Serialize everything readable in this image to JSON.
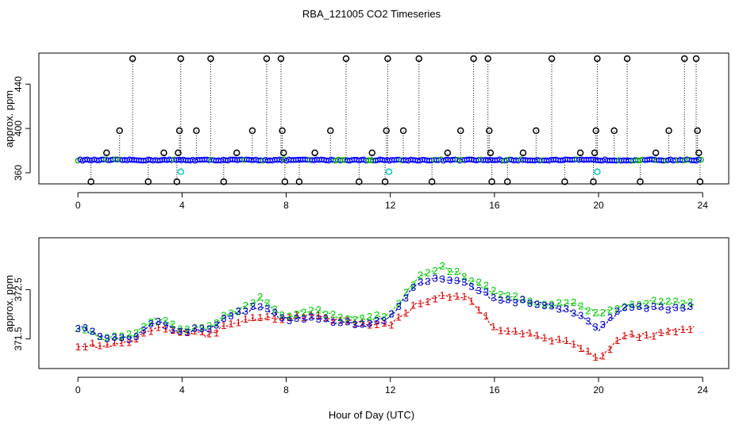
{
  "figure": {
    "title": "RBA_121005  CO2 Timeseries",
    "xlabel": "Hour of Day (UTC)"
  },
  "chart_data": [
    {
      "type": "scatter",
      "panel": "top",
      "ylabel": "approx. ppm",
      "xlim": [
        -1.5,
        25
      ],
      "ylim": [
        350,
        468
      ],
      "x_ticks": [
        0,
        4,
        8,
        12,
        16,
        20,
        24
      ],
      "y_ticks": [
        360,
        400,
        440
      ],
      "baseline_value": 371.5,
      "baseline_color": "#0000ff",
      "baseline_points_color": "#00aa00",
      "spike_color": "#000000",
      "outlier_low_color": "#00cccc",
      "outliers": [
        {
          "x": 0.5,
          "y": 352
        },
        {
          "x": 1.1,
          "y": 378
        },
        {
          "x": 1.6,
          "y": 398
        },
        {
          "x": 2.1,
          "y": 463
        },
        {
          "x": 2.7,
          "y": 352
        },
        {
          "x": 3.3,
          "y": 378
        },
        {
          "x": 3.8,
          "y": 352
        },
        {
          "x": 3.85,
          "y": 378
        },
        {
          "x": 3.9,
          "y": 398
        },
        {
          "x": 3.95,
          "y": 463
        },
        {
          "x": 4.55,
          "y": 398
        },
        {
          "x": 5.1,
          "y": 463
        },
        {
          "x": 5.6,
          "y": 352
        },
        {
          "x": 6.1,
          "y": 378
        },
        {
          "x": 6.7,
          "y": 398
        },
        {
          "x": 7.25,
          "y": 463
        },
        {
          "x": 7.8,
          "y": 463
        },
        {
          "x": 7.85,
          "y": 398
        },
        {
          "x": 7.9,
          "y": 378
        },
        {
          "x": 7.95,
          "y": 352
        },
        {
          "x": 8.5,
          "y": 352
        },
        {
          "x": 9.1,
          "y": 378
        },
        {
          "x": 9.7,
          "y": 398
        },
        {
          "x": 10.3,
          "y": 463
        },
        {
          "x": 10.8,
          "y": 352
        },
        {
          "x": 11.3,
          "y": 378
        },
        {
          "x": 11.8,
          "y": 352
        },
        {
          "x": 11.85,
          "y": 398
        },
        {
          "x": 11.9,
          "y": 463
        },
        {
          "x": 12.5,
          "y": 398
        },
        {
          "x": 13.1,
          "y": 463
        },
        {
          "x": 13.6,
          "y": 352
        },
        {
          "x": 14.2,
          "y": 378
        },
        {
          "x": 14.7,
          "y": 398
        },
        {
          "x": 15.2,
          "y": 463
        },
        {
          "x": 15.75,
          "y": 463
        },
        {
          "x": 15.8,
          "y": 398
        },
        {
          "x": 15.85,
          "y": 378
        },
        {
          "x": 15.9,
          "y": 352
        },
        {
          "x": 16.5,
          "y": 352
        },
        {
          "x": 17.1,
          "y": 378
        },
        {
          "x": 17.6,
          "y": 398
        },
        {
          "x": 18.2,
          "y": 463
        },
        {
          "x": 18.7,
          "y": 352
        },
        {
          "x": 19.3,
          "y": 378
        },
        {
          "x": 19.8,
          "y": 352
        },
        {
          "x": 19.85,
          "y": 378
        },
        {
          "x": 19.9,
          "y": 398
        },
        {
          "x": 19.95,
          "y": 463
        },
        {
          "x": 20.6,
          "y": 398
        },
        {
          "x": 21.1,
          "y": 463
        },
        {
          "x": 21.6,
          "y": 352
        },
        {
          "x": 22.2,
          "y": 378
        },
        {
          "x": 22.7,
          "y": 398
        },
        {
          "x": 23.3,
          "y": 463
        },
        {
          "x": 23.75,
          "y": 463
        },
        {
          "x": 23.8,
          "y": 398
        },
        {
          "x": 23.85,
          "y": 378
        },
        {
          "x": 23.9,
          "y": 352
        }
      ],
      "low_outliers": [
        {
          "x": 3.95,
          "y": 361
        },
        {
          "x": 11.95,
          "y": 361
        },
        {
          "x": 19.95,
          "y": 361
        }
      ]
    },
    {
      "type": "line",
      "panel": "bottom",
      "ylabel": "approx. ppm",
      "xlim": [
        -1.5,
        25
      ],
      "ylim": [
        370.9,
        373.55
      ],
      "x_ticks": [
        0,
        4,
        8,
        12,
        16,
        20,
        24
      ],
      "y_ticks": [
        371.5,
        372.5
      ],
      "series": [
        {
          "name": "1",
          "marker": "1",
          "color": "#dd0000",
          "x": [
            0,
            1,
            2,
            3,
            4,
            5,
            6,
            7,
            8,
            9,
            10,
            11,
            12,
            13,
            14,
            15,
            16,
            17,
            18,
            19,
            20,
            21,
            22,
            23,
            24
          ],
          "y": [
            371.38,
            371.35,
            371.42,
            371.72,
            371.65,
            371.58,
            371.83,
            371.92,
            371.93,
            371.97,
            371.9,
            371.8,
            371.8,
            372.2,
            372.38,
            372.35,
            371.72,
            371.62,
            371.5,
            371.42,
            371.12,
            371.55,
            371.58,
            371.68,
            371.75
          ]
        },
        {
          "name": "2",
          "marker": "2",
          "color": "#00cc00",
          "x": [
            0,
            1,
            2,
            3,
            4,
            5,
            6,
            7,
            8,
            9,
            10,
            11,
            12,
            13,
            14,
            15,
            16,
            17,
            18,
            19,
            20,
            21,
            22,
            23,
            24
          ],
          "y": [
            371.75,
            371.52,
            371.55,
            371.9,
            371.7,
            371.75,
            372.05,
            372.3,
            371.95,
            372.1,
            371.95,
            371.9,
            371.98,
            372.7,
            372.95,
            372.72,
            372.45,
            372.3,
            372.15,
            372.22,
            372.02,
            372.15,
            372.25,
            372.22,
            372.2
          ]
        },
        {
          "name": "3",
          "marker": "3",
          "color": "#0000cc",
          "x": [
            0,
            1,
            2,
            3,
            4,
            5,
            6,
            7,
            8,
            9,
            10,
            11,
            12,
            13,
            14,
            15,
            16,
            17,
            18,
            19,
            20,
            21,
            22,
            23,
            24
          ],
          "y": [
            371.75,
            371.55,
            371.5,
            371.85,
            371.65,
            371.7,
            372.0,
            372.15,
            371.9,
            371.9,
            371.85,
            371.78,
            371.95,
            372.6,
            372.75,
            372.62,
            372.3,
            372.25,
            372.2,
            372.05,
            371.7,
            372.15,
            372.15,
            372.1,
            372.18
          ]
        }
      ]
    }
  ]
}
